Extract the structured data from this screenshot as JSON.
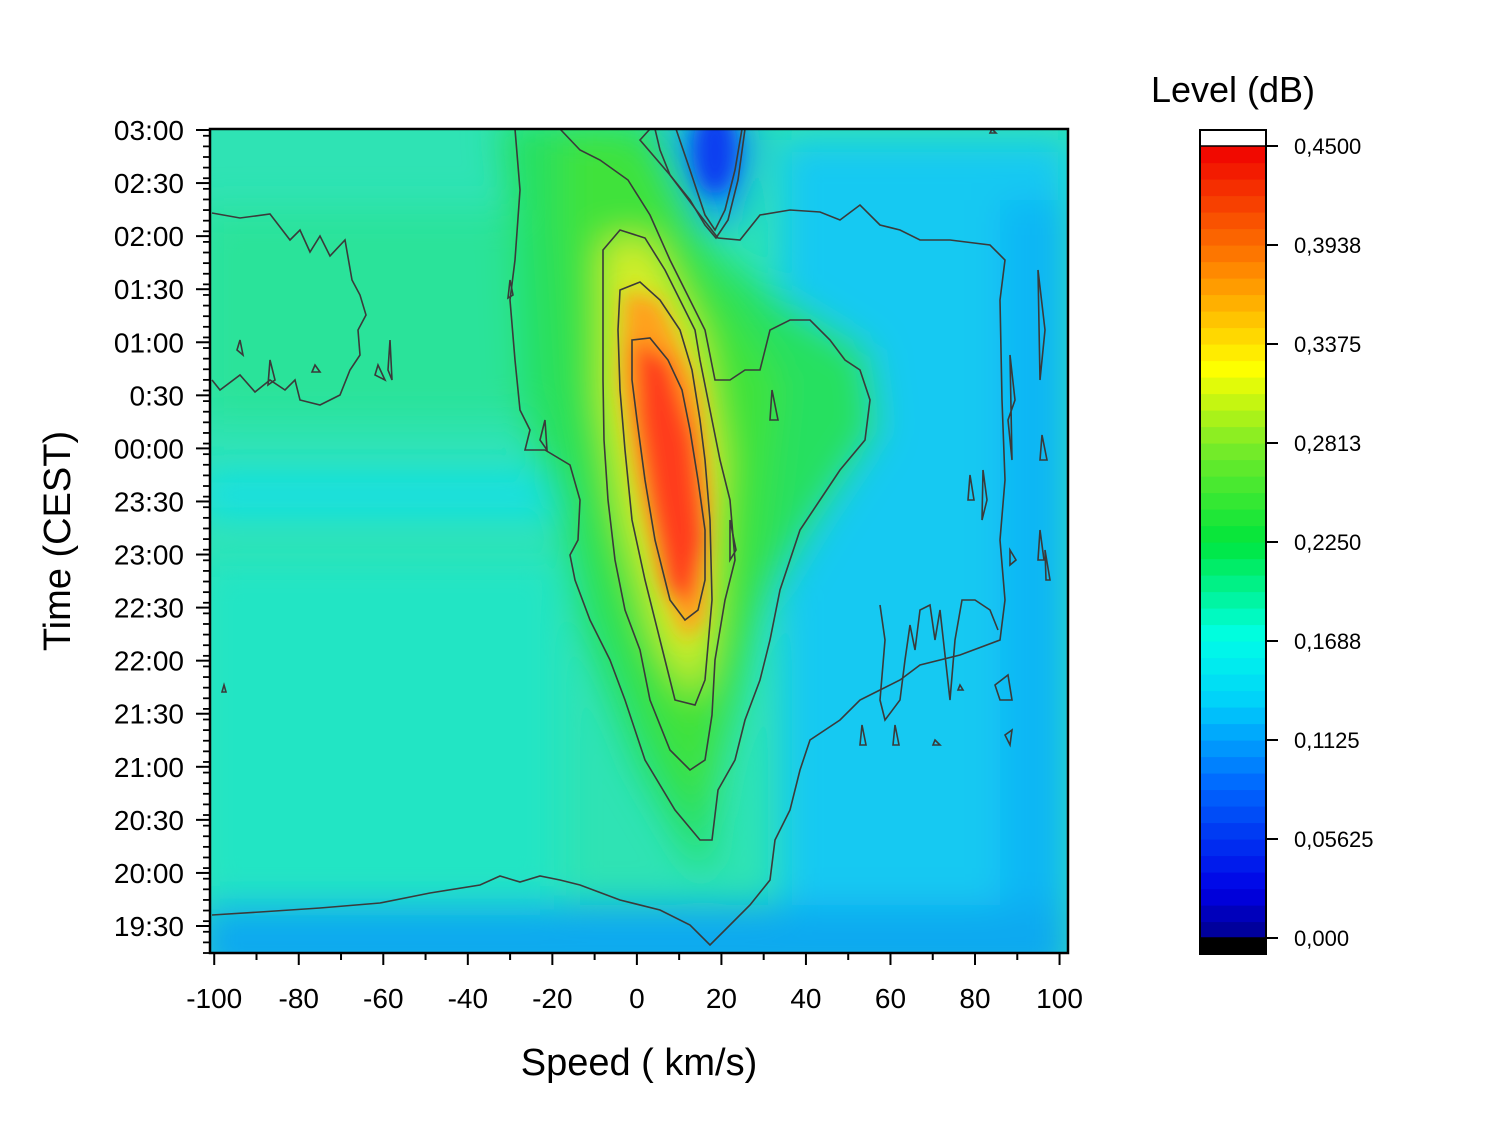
{
  "chart_data": {
    "type": "heatmap",
    "subtype": "filled-contour",
    "xlabel": "Speed ( km/s)",
    "ylabel": "Time (CEST)",
    "xlim": [
      -101,
      102
    ],
    "x_ticks": [
      -100,
      -80,
      -60,
      -40,
      -20,
      0,
      20,
      40,
      60,
      80,
      100
    ],
    "x_tick_labels": [
      "-100",
      "-80",
      "-60",
      "-40",
      "-20",
      "0",
      "20",
      "40",
      "60",
      "80",
      "100"
    ],
    "y_tick_labels": [
      "19:30",
      "20:00",
      "20:30",
      "21:00",
      "21:30",
      "22:00",
      "22:30",
      "23:00",
      "23:30",
      "00:00",
      "0:30",
      "01:00",
      "01:30",
      "02:00",
      "02:30",
      "03:00"
    ],
    "colorbar": {
      "title": "Level (dB)",
      "range": [
        0,
        0.45
      ],
      "tick_values": [
        0.45,
        0.39375,
        0.3375,
        0.28125,
        0.225,
        0.16875,
        0.1125,
        0.05625,
        0
      ],
      "tick_labels": [
        "0,4500",
        "0,3938",
        "0,3375",
        "0,2813",
        "0,2250",
        "0,1688",
        "0,1125",
        "0,05625",
        "0,000"
      ],
      "over_color": "#ffffff",
      "under_color": "#000000"
    },
    "features": [
      {
        "description": "peak",
        "speed_km_s": 3,
        "time": "00:00",
        "level_db": 0.42
      },
      {
        "description": "peak",
        "speed_km_s": 9,
        "time": "23:00",
        "level_db": 0.41
      },
      {
        "description": "minimum",
        "speed_km_s": 17,
        "time": "03:00",
        "level_db": 0.03
      }
    ],
    "grid": false,
    "legend": "colorbar-right"
  }
}
